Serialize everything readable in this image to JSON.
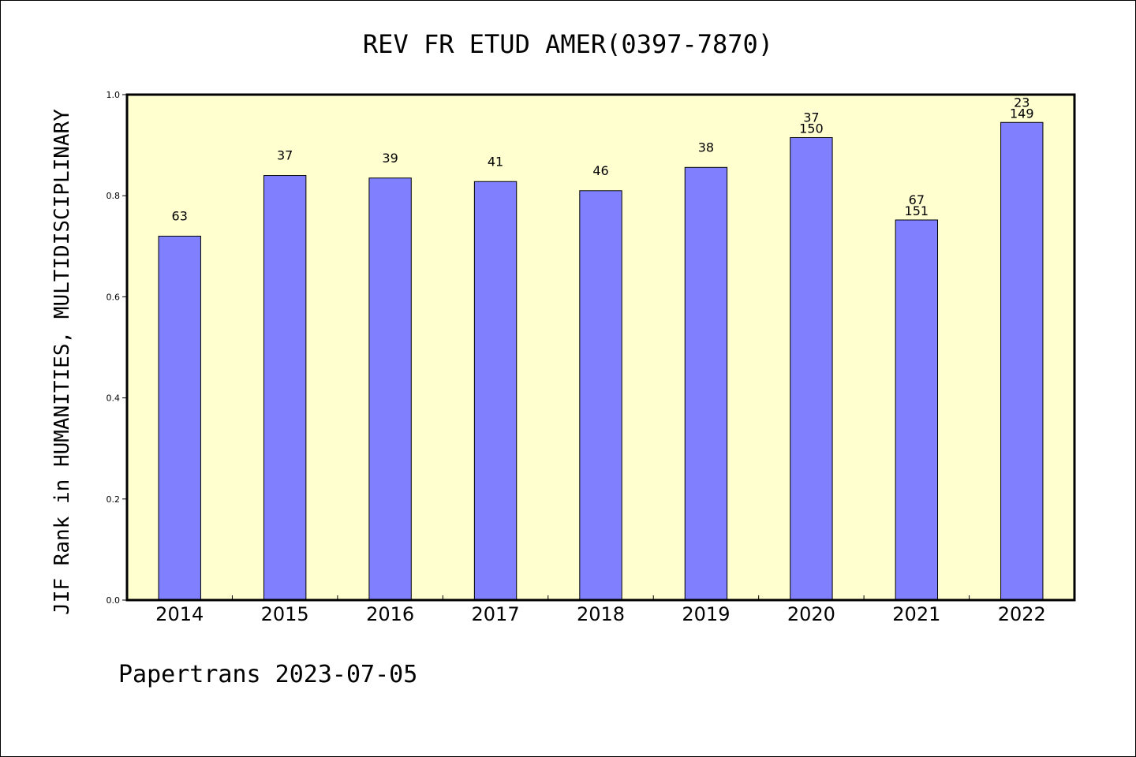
{
  "chart_data": {
    "type": "bar",
    "title": "REV FR ETUD AMER(0397-7870)",
    "xlabel": "",
    "ylabel": "JIF Rank in HUMANITIES, MULTIDISCIPLINARY",
    "ylim": [
      0,
      1.0
    ],
    "yticks": [
      "0.0",
      "0.2",
      "0.4",
      "0.6",
      "0.8",
      "1.0"
    ],
    "grid": false,
    "categories": [
      "2014",
      "2015",
      "2016",
      "2017",
      "2018",
      "2019",
      "2020",
      "2021",
      "2022"
    ],
    "values": [
      0.72,
      0.84,
      0.835,
      0.828,
      0.81,
      0.856,
      0.915,
      0.752,
      0.945
    ],
    "bar_labels": [
      [
        "63"
      ],
      [
        "37"
      ],
      [
        "39"
      ],
      [
        "41"
      ],
      [
        "46"
      ],
      [
        "38"
      ],
      [
        "37",
        "150"
      ],
      [
        "67",
        "151"
      ],
      [
        "23",
        "149"
      ]
    ],
    "colors": {
      "bar_fill": "#8080ff",
      "plot_background": "#ffffd0",
      "axis": "#000000"
    }
  },
  "footer": "Papertrans 2023-07-05"
}
